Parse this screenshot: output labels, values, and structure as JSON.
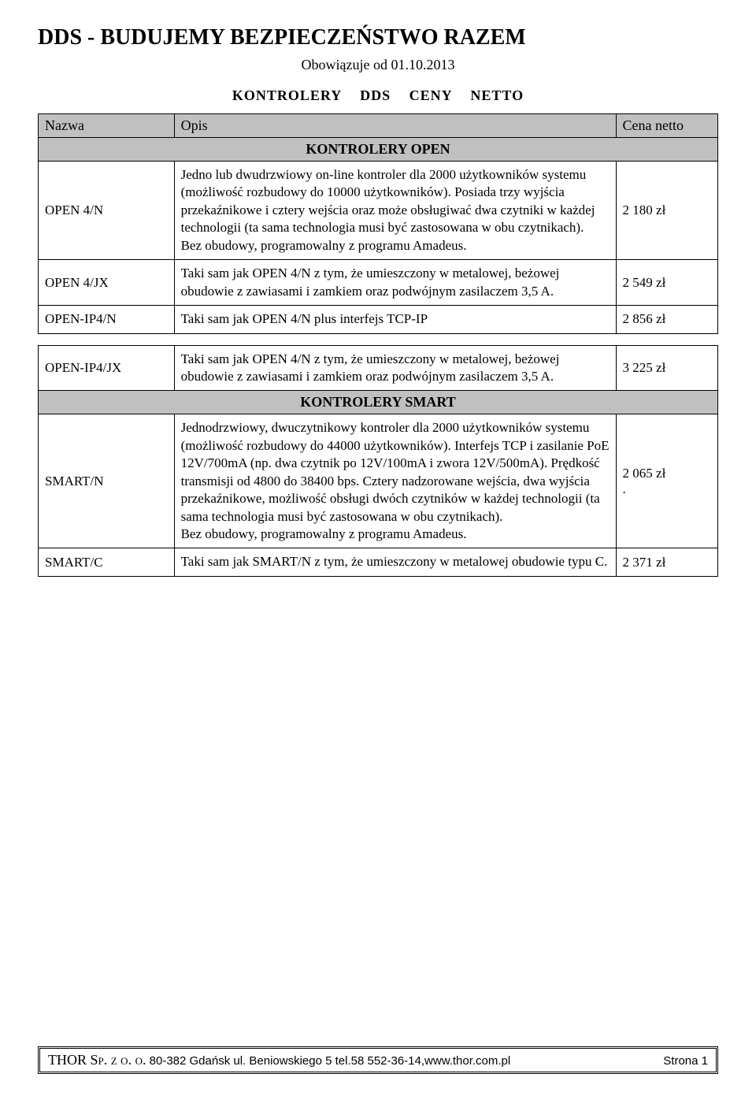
{
  "doc_title": "DDS - BUDUJEMY BEZPIECZEŃSTWO RAZEM",
  "effective_date": "Obowiązuje od 01.10.2013",
  "section_title": "KONTROLERY DDS CENY NETTO",
  "columns": {
    "name": "Nazwa",
    "desc": "Opis",
    "price": "Cena netto"
  },
  "subheader_open": "KONTROLERY OPEN",
  "subheader_smart": "KONTROLERY SMART",
  "rows": {
    "open4n": {
      "name": "OPEN 4/N",
      "desc": "Jedno lub dwudrzwiowy on-line kontroler dla 2000 użytkowników systemu (możliwość rozbudowy do 10000 użytkowników). Posiada trzy wyjścia przekaźnikowe i cztery wejścia oraz może obsługiwać dwa czytniki w każdej technologii (ta sama technologia musi być zastosowana w obu czytnikach).\nBez obudowy, programowalny z programu Amadeus.",
      "price": "2 180 zł"
    },
    "open4jx": {
      "name": "OPEN 4/JX",
      "desc": "Taki sam jak OPEN 4/N z tym, że umieszczony w metalowej, beżowej obudowie z zawiasami i zamkiem oraz podwójnym zasilaczem 3,5 A.",
      "price": "2 549 zł"
    },
    "openip4n": {
      "name": "OPEN-IP4/N",
      "desc": "Taki sam jak OPEN 4/N plus interfejs TCP-IP",
      "price": "2 856 zł"
    },
    "openip4jx": {
      "name": "OPEN-IP4/JX",
      "desc": "Taki sam jak OPEN 4/N z tym, że umieszczony w metalowej, beżowej obudowie z zawiasami i zamkiem oraz podwójnym zasilaczem 3,5 A.",
      "price": "3 225 zł"
    },
    "smartn": {
      "name": "SMART/N",
      "desc": "Jednodrzwiowy, dwuczytnikowy kontroler dla 2000 użytkowników systemu (możliwość rozbudowy do 44000 użytkowników). Interfejs TCP i zasilanie PoE 12V/700mA (np. dwa czytnik po 12V/100mA i zwora 12V/500mA). Prędkość transmisji od 4800 do 38400 bps. Cztery nadzorowane wejścia, dwa wyjścia przekaźnikowe, możliwość obsługi dwóch czytników w każdej technologii (ta sama technologia musi być zastosowana w obu czytnikach).\nBez obudowy, programowalny z programu Amadeus.",
      "price": "2 065 zł\n."
    },
    "smartc": {
      "name": "SMART/C",
      "desc": "Taki sam jak SMART/N z tym, że umieszczony w metalowej obudowie typu C.",
      "price": "2 371 zł"
    }
  },
  "footer": {
    "company_prefix": "THOR ",
    "company_suffix": "Sp. z o. o.",
    "address": " 80-382 Gdańsk ul. Beniowskiego 5 tel.58 552-36-14,www.thor.com.pl",
    "page": "Strona 1"
  },
  "colors": {
    "header_bg": "#c0c0c0",
    "border": "#000000",
    "page_bg": "#ffffff",
    "text": "#000000"
  }
}
